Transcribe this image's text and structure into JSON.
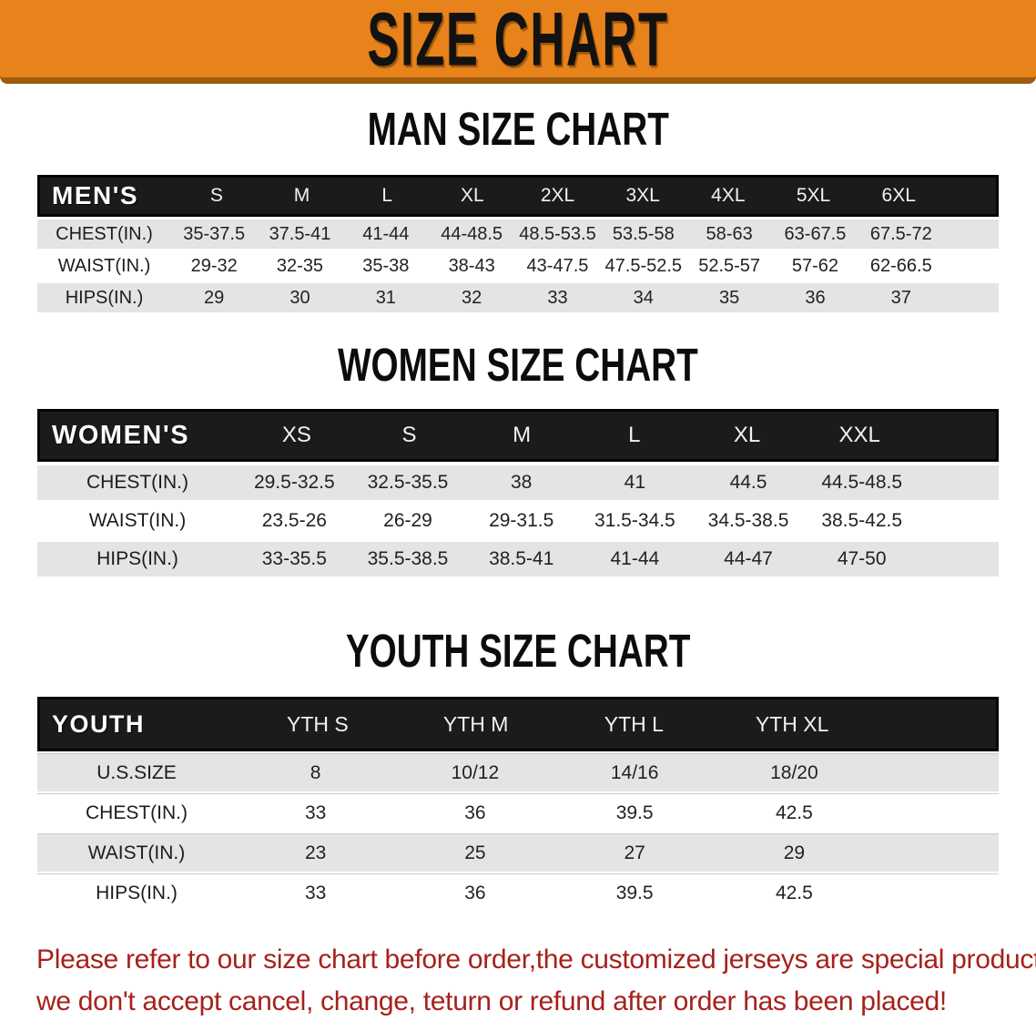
{
  "banner": {
    "title": "SIZE CHART",
    "bg_color": "#E8821A",
    "edge_color": "#9D5C10"
  },
  "sections": [
    {
      "name": "men",
      "heading": "MAN SIZE CHART",
      "group_label": "MEN'S",
      "columns": [
        "S",
        "M",
        "L",
        "XL",
        "2XL",
        "3XL",
        "4XL",
        "5XL",
        "6XL"
      ],
      "rows": [
        {
          "label": "CHEST(IN.)",
          "values": [
            "35-37.5",
            "37.5-41",
            "41-44",
            "44-48.5",
            "48.5-53.5",
            "53.5-58",
            "58-63",
            "63-67.5",
            "67.5-72"
          ]
        },
        {
          "label": "WAIST(IN.)",
          "values": [
            "29-32",
            "32-35",
            "35-38",
            "38-43",
            "43-47.5",
            "47.5-52.5",
            "52.5-57",
            "57-62",
            "62-66.5"
          ]
        },
        {
          "label": "HIPS(IN.)",
          "values": [
            "29",
            "30",
            "31",
            "32",
            "33",
            "34",
            "35",
            "36",
            "37"
          ]
        }
      ]
    },
    {
      "name": "women",
      "heading": "WOMEN SIZE CHART",
      "group_label": "WOMEN'S",
      "columns": [
        "XS",
        "S",
        "M",
        "L",
        "XL",
        "XXL"
      ],
      "rows": [
        {
          "label": "CHEST(IN.)",
          "values": [
            "29.5-32.5",
            "32.5-35.5",
            "38",
            "41",
            "44.5",
            "44.5-48.5"
          ]
        },
        {
          "label": "WAIST(IN.)",
          "values": [
            "23.5-26",
            "26-29",
            "29-31.5",
            "31.5-34.5",
            "34.5-38.5",
            "38.5-42.5"
          ]
        },
        {
          "label": "HIPS(IN.)",
          "values": [
            "33-35.5",
            "35.5-38.5",
            "38.5-41",
            "41-44",
            "44-47",
            "47-50"
          ]
        }
      ]
    },
    {
      "name": "youth",
      "heading": "YOUTH SIZE CHART",
      "group_label": "YOUTH",
      "columns": [
        "YTH S",
        "YTH M",
        "YTH L",
        "YTH XL"
      ],
      "rows": [
        {
          "label": "U.S.SIZE",
          "values": [
            "8",
            "10/12",
            "14/16",
            "18/20"
          ]
        },
        {
          "label": "CHEST(IN.)",
          "values": [
            "33",
            "36",
            "39.5",
            "42.5"
          ]
        },
        {
          "label": "WAIST(IN.)",
          "values": [
            "23",
            "25",
            "27",
            "29"
          ]
        },
        {
          "label": "HIPS(IN.)",
          "values": [
            "33",
            "36",
            "39.5",
            "42.5"
          ]
        }
      ]
    }
  ],
  "disclaimer": {
    "line1": "Please refer to our size chart before order,the customized jerseys are special products,",
    "line2": "we don't accept cancel, change, teturn or refund after order has been placed!",
    "color": "#A6211C"
  }
}
